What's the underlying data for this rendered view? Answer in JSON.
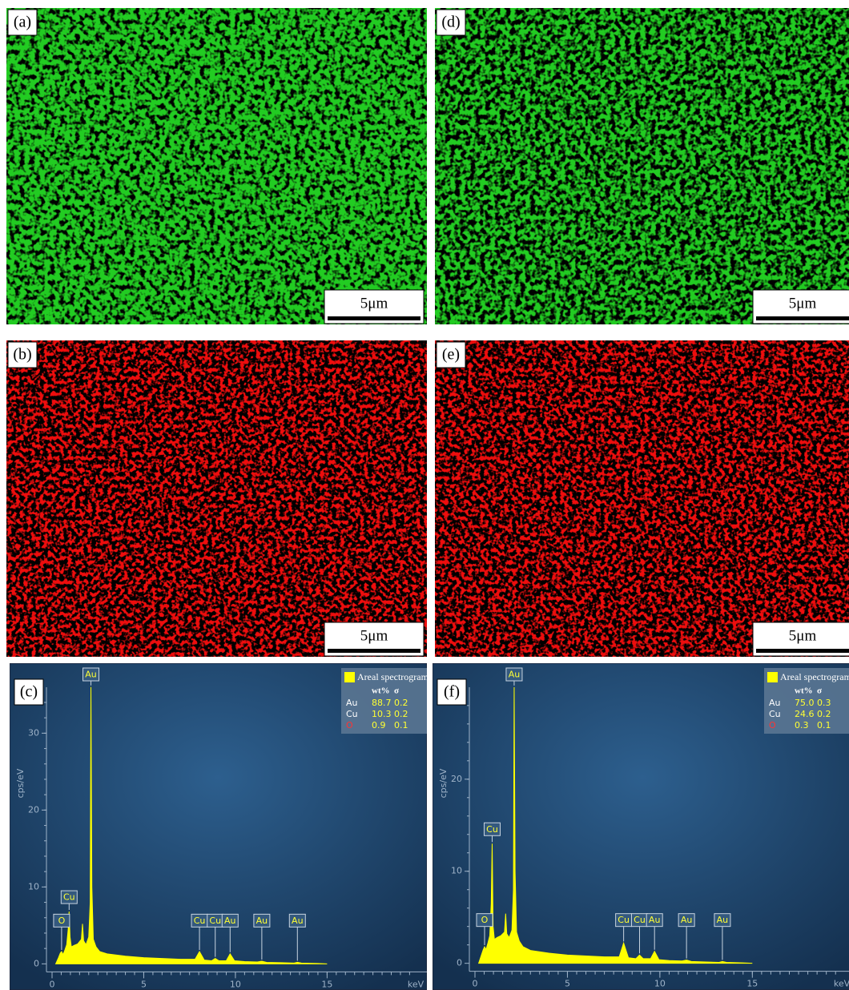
{
  "maps": [
    {
      "label": "(a)",
      "scale_bar": "5μm",
      "color": "#22cc22"
    },
    {
      "label": "(d)",
      "scale_bar": "5μm",
      "color": "#22cc22"
    },
    {
      "label": "(b)",
      "scale_bar": "5μm",
      "color": "#ee1111"
    },
    {
      "label": "(e)",
      "scale_bar": "5μm",
      "color": "#ee1111"
    }
  ],
  "chart_data": [
    {
      "type": "line",
      "label": "(c)",
      "y_label": "cps/eV",
      "x_unit": "keV",
      "xlim": [
        0,
        20.4
      ],
      "ylim": [
        -3.4,
        39.1
      ],
      "xticks": [
        0,
        5,
        10,
        15
      ],
      "yticks": [
        0,
        10,
        20,
        30
      ],
      "x": [
        0.2,
        0.35,
        0.45,
        0.52,
        0.6,
        0.7,
        0.8,
        0.88,
        0.93,
        0.98,
        1.05,
        1.2,
        1.4,
        1.6,
        1.66,
        1.72,
        1.85,
        2.0,
        2.08,
        2.12,
        2.17,
        2.25,
        2.4,
        2.6,
        3.0,
        4,
        5,
        6,
        7,
        7.8,
        8.04,
        8.3,
        8.7,
        8.9,
        9.1,
        9.5,
        9.71,
        9.95,
        10.5,
        11.2,
        11.44,
        11.7,
        12.5,
        13.2,
        13.38,
        13.6,
        14.5,
        15
      ],
      "series": [
        {
          "name": "Areal spectrogram",
          "color": "#ffff00",
          "values": [
            0,
            0.8,
            1.4,
            1.6,
            1.2,
            1.8,
            2.5,
            4.5,
            6.8,
            3.5,
            2.2,
            2.4,
            2.6,
            3.2,
            5.2,
            3.0,
            2.5,
            3.5,
            8,
            36,
            10,
            3.2,
            2.2,
            1.6,
            1.3,
            1.0,
            0.8,
            0.7,
            0.6,
            0.6,
            1.6,
            0.5,
            0.4,
            0.7,
            0.4,
            0.4,
            1.3,
            0.4,
            0.3,
            0.25,
            0.35,
            0.2,
            0.15,
            0.1,
            0.2,
            0.1,
            0.05,
            0
          ]
        }
      ],
      "peaks": [
        {
          "label": "O",
          "x": 0.52
        },
        {
          "label": "Cu",
          "x": 0.93
        },
        {
          "label": "Au",
          "x": 2.12
        },
        {
          "label": "Cu",
          "x": 8.04
        },
        {
          "label": "Cu",
          "x": 8.9
        },
        {
          "label": "Au",
          "x": 9.71
        },
        {
          "label": "Au",
          "x": 11.44
        },
        {
          "label": "Au",
          "x": 13.38
        }
      ],
      "table": {
        "columns": [
          "wt%",
          "σ"
        ],
        "rows": [
          {
            "element": "Au",
            "color": "#ffffff",
            "wt": "88.7",
            "sigma": "0.2"
          },
          {
            "element": "Cu",
            "color": "#ffffff",
            "wt": "10.3",
            "sigma": "0.2"
          },
          {
            "element": "O",
            "color": "#ff3333",
            "wt": "0.9",
            "sigma": "0.1"
          }
        ]
      }
    },
    {
      "type": "line",
      "label": "(f)",
      "y_label": "cps/eV",
      "x_unit": "keV",
      "xlim": [
        0,
        20.4
      ],
      "ylim": [
        -2.9,
        32.6
      ],
      "xticks": [
        0,
        5,
        10,
        15
      ],
      "yticks": [
        0,
        10,
        20
      ],
      "x": [
        0.2,
        0.35,
        0.45,
        0.52,
        0.6,
        0.7,
        0.8,
        0.88,
        0.93,
        0.98,
        1.05,
        1.2,
        1.4,
        1.6,
        1.66,
        1.72,
        1.85,
        2.0,
        2.08,
        2.12,
        2.17,
        2.25,
        2.4,
        2.6,
        3.0,
        4,
        5,
        6,
        7,
        7.8,
        8.04,
        8.3,
        8.7,
        8.9,
        9.1,
        9.5,
        9.71,
        9.95,
        10.5,
        11.2,
        11.44,
        11.7,
        12.5,
        13.2,
        13.38,
        13.6,
        14.5,
        15
      ],
      "series": [
        {
          "name": "Areal spectrogram",
          "color": "#ffff00",
          "values": [
            0,
            0.9,
            1.5,
            1.8,
            1.5,
            2.2,
            3.0,
            6.5,
            13,
            4.0,
            2.6,
            2.8,
            3.0,
            3.4,
            5.4,
            3.2,
            2.8,
            3.6,
            8,
            30,
            10,
            3.4,
            2.4,
            1.8,
            1.4,
            1.1,
            0.9,
            0.8,
            0.7,
            0.7,
            2.2,
            0.6,
            0.5,
            0.9,
            0.5,
            0.5,
            1.3,
            0.4,
            0.3,
            0.25,
            0.35,
            0.2,
            0.15,
            0.1,
            0.2,
            0.1,
            0.05,
            0
          ]
        }
      ],
      "peaks": [
        {
          "label": "O",
          "x": 0.52
        },
        {
          "label": "Cu",
          "x": 0.93
        },
        {
          "label": "Au",
          "x": 2.12
        },
        {
          "label": "Cu",
          "x": 8.04
        },
        {
          "label": "Cu",
          "x": 8.9
        },
        {
          "label": "Au",
          "x": 9.71
        },
        {
          "label": "Au",
          "x": 11.44
        },
        {
          "label": "Au",
          "x": 13.38
        }
      ],
      "table": {
        "columns": [
          "wt%",
          "σ"
        ],
        "rows": [
          {
            "element": "Au",
            "color": "#ffffff",
            "wt": "75.0",
            "sigma": "0.3"
          },
          {
            "element": "Cu",
            "color": "#ffffff",
            "wt": "24.6",
            "sigma": "0.2"
          },
          {
            "element": "O",
            "color": "#ff3333",
            "wt": "0.3",
            "sigma": "0.1"
          }
        ]
      }
    }
  ]
}
